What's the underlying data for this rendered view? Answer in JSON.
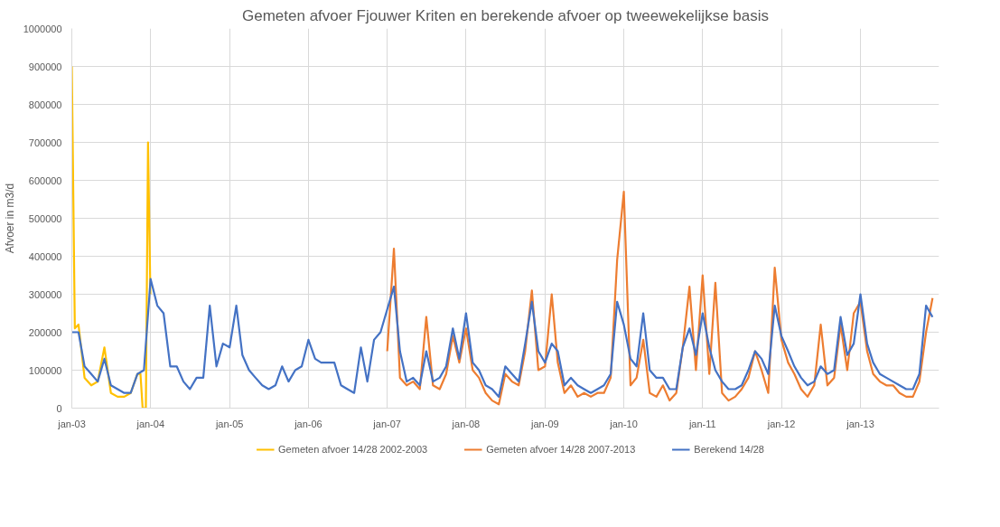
{
  "chart_data": {
    "type": "line",
    "title": "Gemeten afvoer Fjouwer Kriten en berekende afvoer op tweewekelijkse basis",
    "ylabel": "Afvoer in m3/d",
    "x": [
      "2003-01",
      "2003-02",
      "2003-03",
      "2003-04",
      "2003-05",
      "2003-06",
      "2003-07",
      "2003-08",
      "2003-09",
      "2003-10",
      "2003-11",
      "2003-12",
      "2004-01",
      "2004-02",
      "2004-03",
      "2004-04",
      "2004-05",
      "2004-06",
      "2004-07",
      "2004-08",
      "2004-09",
      "2004-10",
      "2004-11",
      "2004-12",
      "2005-01",
      "2005-02",
      "2005-03",
      "2005-04",
      "2005-05",
      "2005-06",
      "2005-07",
      "2005-08",
      "2005-09",
      "2005-10",
      "2005-11",
      "2005-12",
      "2006-01",
      "2006-02",
      "2006-03",
      "2006-04",
      "2006-05",
      "2006-06",
      "2006-07",
      "2006-08",
      "2006-09",
      "2006-10",
      "2006-11",
      "2006-12",
      "2007-01",
      "2007-02",
      "2007-03",
      "2007-04",
      "2007-05",
      "2007-06",
      "2007-07",
      "2007-08",
      "2007-09",
      "2007-10",
      "2007-11",
      "2007-12",
      "2008-01",
      "2008-02",
      "2008-03",
      "2008-04",
      "2008-05",
      "2008-06",
      "2008-07",
      "2008-08",
      "2008-09",
      "2008-10",
      "2008-11",
      "2008-12",
      "2009-01",
      "2009-02",
      "2009-03",
      "2009-04",
      "2009-05",
      "2009-06",
      "2009-07",
      "2009-08",
      "2009-09",
      "2009-10",
      "2009-11",
      "2009-12",
      "2010-01",
      "2010-02",
      "2010-03",
      "2010-04",
      "2010-05",
      "2010-06",
      "2010-07",
      "2010-08",
      "2010-09",
      "2010-10",
      "2010-11",
      "2010-12",
      "2011-01",
      "2011-02",
      "2011-03",
      "2011-04",
      "2011-05",
      "2011-06",
      "2011-07",
      "2011-08",
      "2011-09",
      "2011-10",
      "2011-11",
      "2011-12",
      "2012-01",
      "2012-02",
      "2012-03",
      "2012-04",
      "2012-05",
      "2012-06",
      "2012-07",
      "2012-08",
      "2012-09",
      "2012-10",
      "2012-11",
      "2012-12",
      "2013-01",
      "2013-02",
      "2013-03",
      "2013-04",
      "2013-05",
      "2013-06",
      "2013-07",
      "2013-08",
      "2013-09",
      "2013-10",
      "2013-11",
      "2013-12"
    ],
    "series": [
      {
        "name": "Gemeten afvoer 14/28 2002-2003",
        "color": "#ffc000",
        "x": [
          "2003-01-01",
          "2003-01-15",
          "2003-02-01",
          "2003-03-01",
          "2003-04-01",
          "2003-05-01",
          "2003-06-01",
          "2003-07-01",
          "2003-08-01",
          "2003-09-01",
          "2003-10-01",
          "2003-11-01",
          "2003-11-15",
          "2003-11-25",
          "2003-12-10",
          "2003-12-20",
          "2003-12-31"
        ],
        "values": [
          900000,
          210000,
          220000,
          80000,
          60000,
          70000,
          160000,
          40000,
          30000,
          30000,
          40000,
          90000,
          90000,
          0,
          0,
          700000,
          300000
        ]
      },
      {
        "name": "Gemeten afvoer 14/28 2007-2013",
        "color": "#ed7d31",
        "values": [
          null,
          null,
          null,
          null,
          null,
          null,
          null,
          null,
          null,
          null,
          null,
          null,
          null,
          null,
          null,
          null,
          null,
          null,
          null,
          null,
          null,
          null,
          null,
          null,
          null,
          null,
          null,
          null,
          null,
          null,
          null,
          null,
          null,
          null,
          null,
          null,
          null,
          null,
          null,
          null,
          null,
          null,
          null,
          null,
          null,
          null,
          null,
          null,
          150000,
          420000,
          80000,
          60000,
          70000,
          50000,
          240000,
          60000,
          50000,
          90000,
          190000,
          120000,
          210000,
          100000,
          80000,
          40000,
          20000,
          10000,
          90000,
          70000,
          60000,
          150000,
          310000,
          100000,
          110000,
          300000,
          120000,
          40000,
          60000,
          30000,
          40000,
          30000,
          40000,
          40000,
          80000,
          390000,
          570000,
          60000,
          80000,
          180000,
          40000,
          30000,
          60000,
          20000,
          40000,
          160000,
          320000,
          100000,
          350000,
          90000,
          330000,
          40000,
          20000,
          30000,
          50000,
          80000,
          150000,
          100000,
          40000,
          370000,
          180000,
          120000,
          90000,
          50000,
          30000,
          60000,
          220000,
          60000,
          80000,
          220000,
          100000,
          250000,
          280000,
          150000,
          90000,
          70000,
          60000,
          60000,
          40000,
          30000,
          30000,
          70000,
          200000,
          290000
        ]
      },
      {
        "name": "Berekend 14/28",
        "color": "#4472c4",
        "values": [
          200000,
          200000,
          110000,
          90000,
          70000,
          130000,
          60000,
          50000,
          40000,
          40000,
          90000,
          100000,
          340000,
          270000,
          250000,
          110000,
          110000,
          70000,
          50000,
          80000,
          80000,
          270000,
          110000,
          170000,
          160000,
          270000,
          140000,
          100000,
          80000,
          60000,
          50000,
          60000,
          110000,
          70000,
          100000,
          110000,
          180000,
          130000,
          120000,
          120000,
          120000,
          60000,
          50000,
          40000,
          160000,
          70000,
          180000,
          200000,
          260000,
          320000,
          150000,
          70000,
          80000,
          60000,
          150000,
          70000,
          80000,
          110000,
          210000,
          130000,
          250000,
          120000,
          100000,
          60000,
          50000,
          30000,
          110000,
          90000,
          70000,
          170000,
          280000,
          150000,
          120000,
          170000,
          150000,
          60000,
          80000,
          60000,
          50000,
          40000,
          50000,
          60000,
          90000,
          280000,
          220000,
          130000,
          110000,
          250000,
          100000,
          80000,
          80000,
          50000,
          50000,
          160000,
          210000,
          140000,
          250000,
          160000,
          100000,
          70000,
          50000,
          50000,
          60000,
          100000,
          150000,
          130000,
          90000,
          270000,
          190000,
          150000,
          110000,
          80000,
          60000,
          70000,
          110000,
          90000,
          100000,
          240000,
          140000,
          170000,
          300000,
          170000,
          120000,
          90000,
          80000,
          70000,
          60000,
          50000,
          50000,
          90000,
          270000,
          240000
        ]
      }
    ],
    "xlim": [
      "2003-01-01",
      "2013-12-31"
    ],
    "xticks": [
      {
        "value": "2003-01-01",
        "label": "jan-03"
      },
      {
        "value": "2004-01-01",
        "label": "jan-04"
      },
      {
        "value": "2005-01-01",
        "label": "jan-05"
      },
      {
        "value": "2006-01-01",
        "label": "jan-06"
      },
      {
        "value": "2007-01-01",
        "label": "jan-07"
      },
      {
        "value": "2008-01-01",
        "label": "jan-08"
      },
      {
        "value": "2009-01-01",
        "label": "jan-09"
      },
      {
        "value": "2010-01-01",
        "label": "jan-10"
      },
      {
        "value": "2011-01-01",
        "label": "jan-11"
      },
      {
        "value": "2012-01-01",
        "label": "jan-12"
      },
      {
        "value": "2013-01-01",
        "label": "jan-13"
      }
    ],
    "ylim": [
      0,
      1000000
    ],
    "yticks": [
      0,
      100000,
      200000,
      300000,
      400000,
      500000,
      600000,
      700000,
      800000,
      900000,
      1000000
    ],
    "grid": true,
    "legend": "bottom",
    "marker": "none",
    "line_style": "solid"
  }
}
